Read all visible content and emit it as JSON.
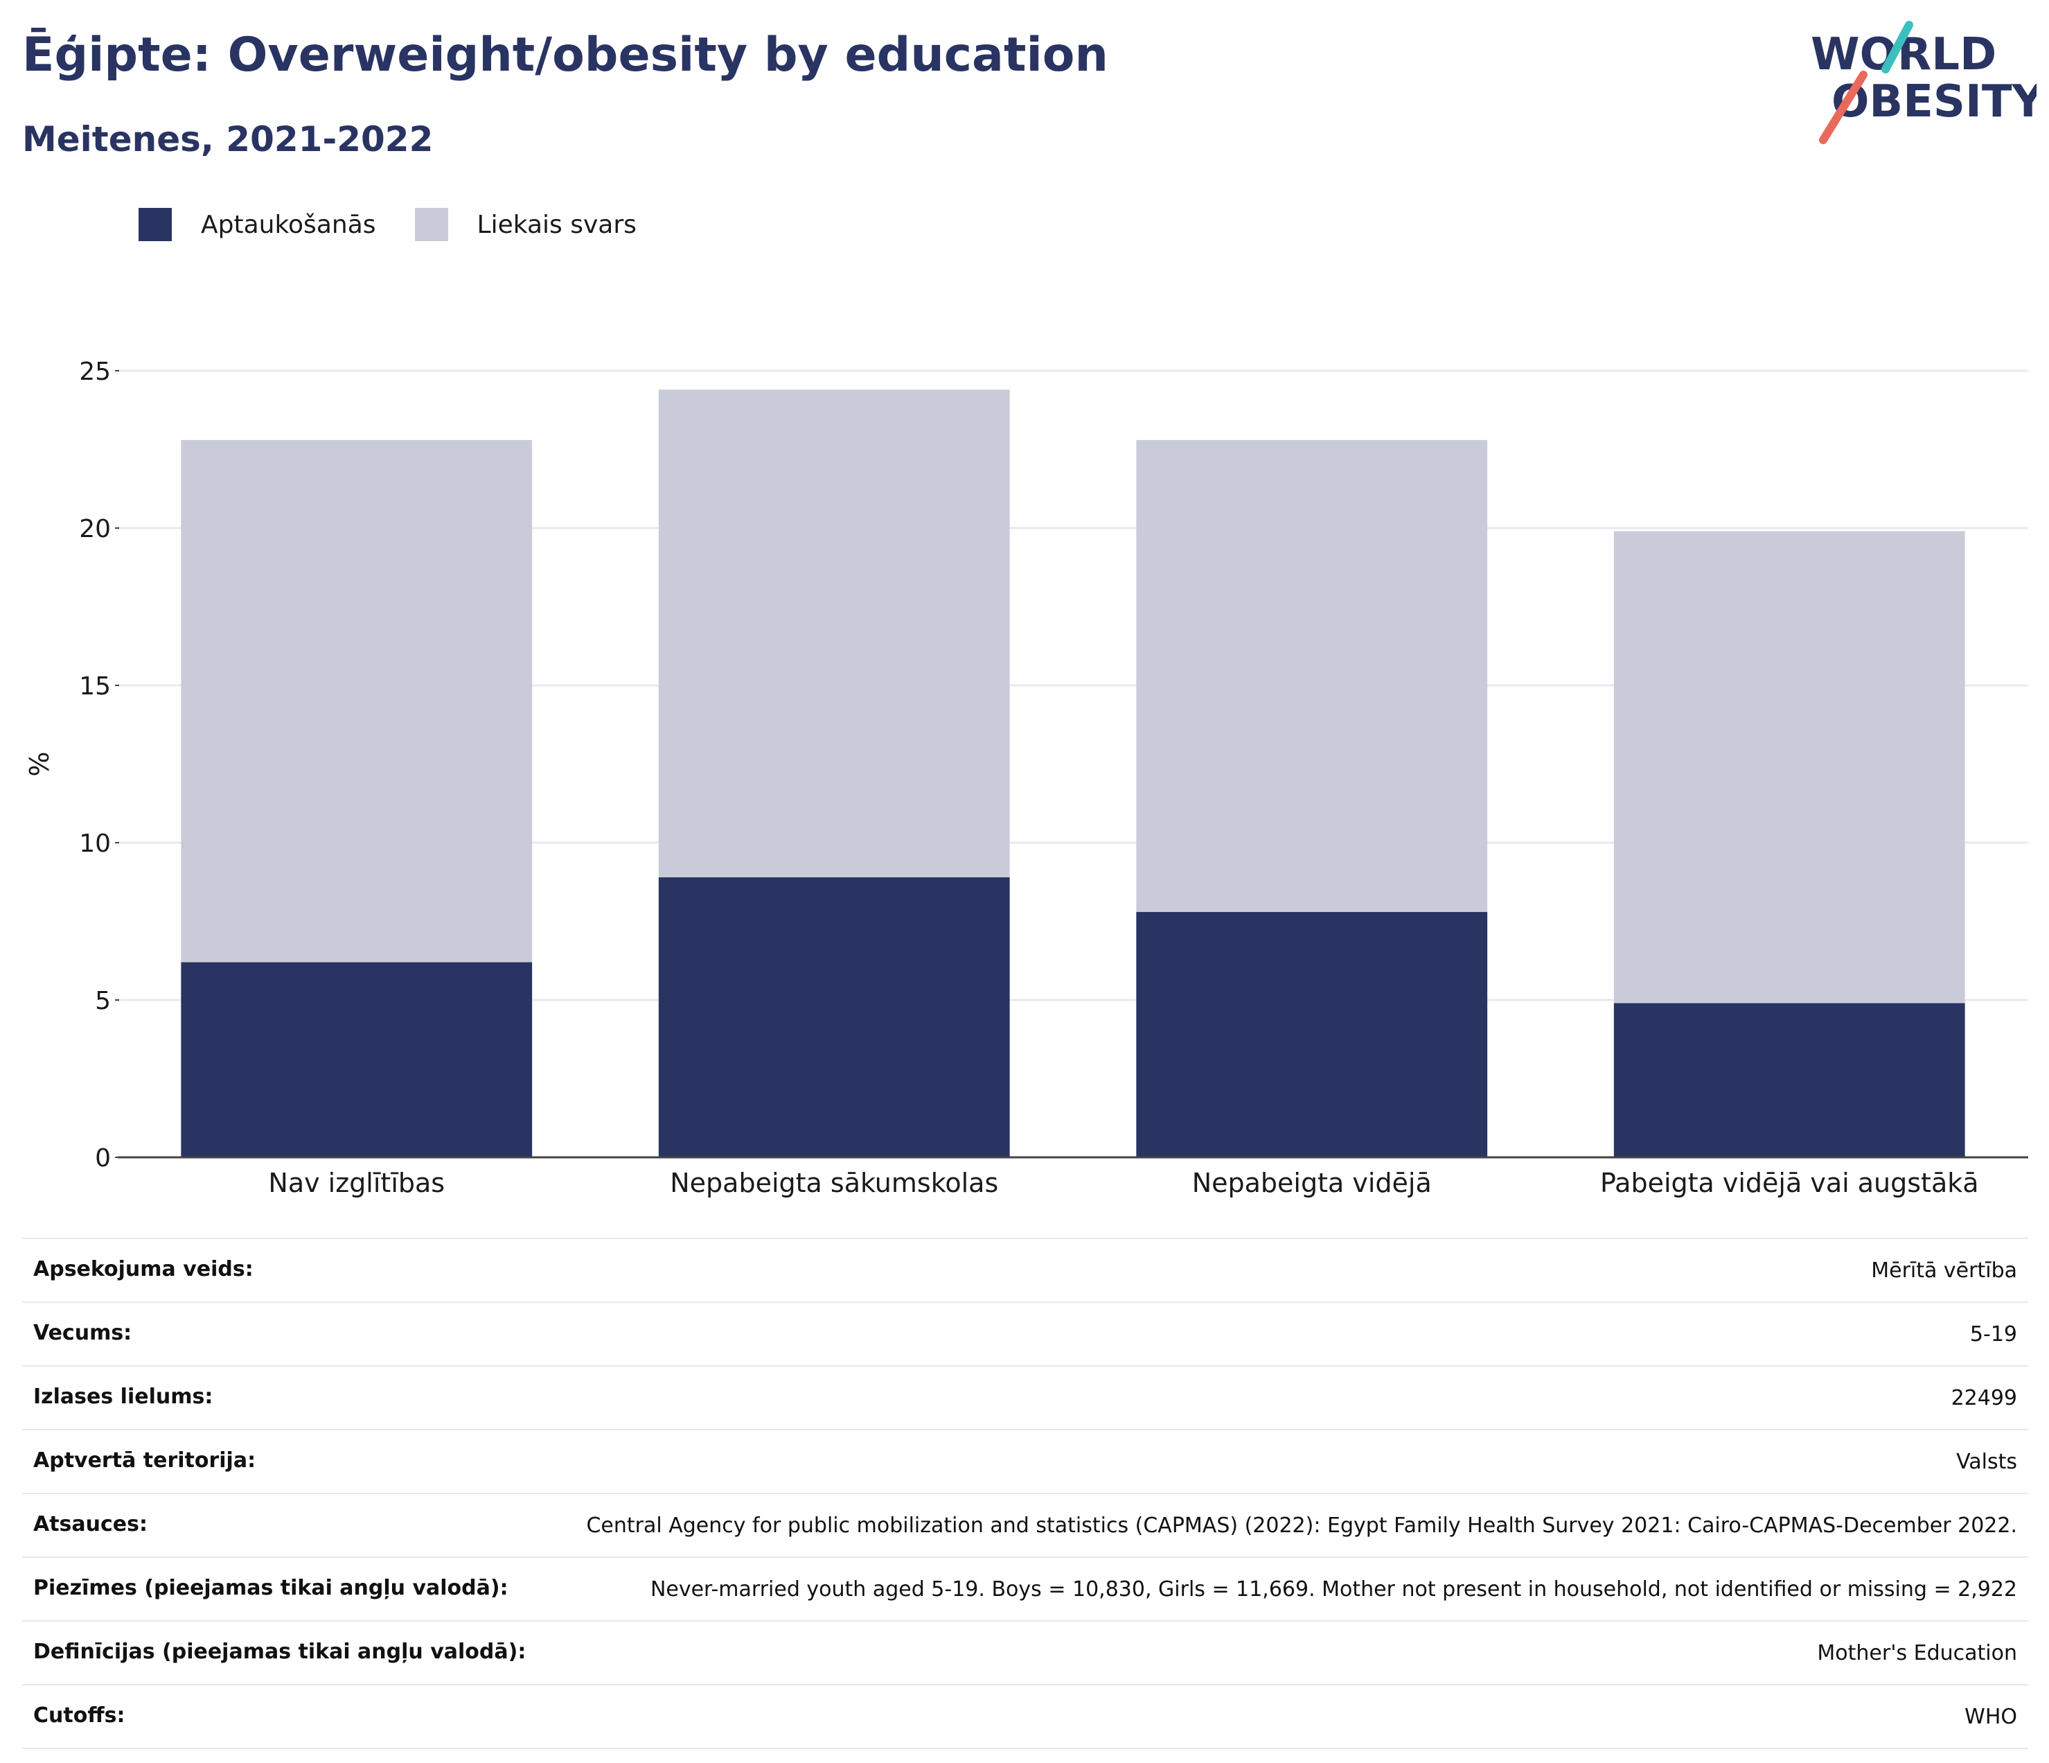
{
  "header": {
    "title": "Ēģipte: Overweight/obesity by education",
    "subtitle": "Meitenes, 2021-2022"
  },
  "logo": {
    "line1": "WORLD",
    "line2": "OBESITY",
    "accent_teal": "#3bbfbf",
    "accent_coral": "#e86a5a"
  },
  "chart_data": {
    "type": "bar",
    "stacked": true,
    "categories": [
      "Nav izglītības",
      "Nepabeigta sākumskolas",
      "Nepabeigta vidējā",
      "Pabeigta vidējā vai augstākā"
    ],
    "series": [
      {
        "name": "Aptaukošanās",
        "color": "#293462",
        "values": [
          6.2,
          8.9,
          7.8,
          4.9
        ]
      },
      {
        "name": "Liekais svars",
        "color": "#c9ccd8",
        "values": [
          16.6,
          15.5,
          15.0,
          15.0
        ]
      }
    ],
    "ylabel": "%",
    "ylim": [
      0,
      25
    ],
    "yticks": [
      0,
      5,
      10,
      15,
      20,
      25
    ],
    "grid": true,
    "legend_position": "top-left"
  },
  "info": [
    {
      "label": "Apsekojuma veids:",
      "value": "Mērītā vērtība"
    },
    {
      "label": "Vecums:",
      "value": "5-19"
    },
    {
      "label": "Izlases lielums:",
      "value": "22499"
    },
    {
      "label": "Aptvertā teritorija:",
      "value": "Valsts"
    },
    {
      "label": "Atsauces:",
      "value": "Central Agency for public mobilization and statistics (CAPMAS) (2022): Egypt Family Health Survey 2021: Cairo-CAPMAS-December 2022."
    },
    {
      "label": "Piezīmes (pieejamas tikai angļu valodā):",
      "value": "Never-married youth aged 5-19. Boys = 10,830, Girls = 11,669. Mother not present in household, not identified or missing = 2,922"
    },
    {
      "label": "Definīcijas (pieejamas tikai angļu valodā):",
      "value": "Mother's Education"
    },
    {
      "label": "Cutoffs:",
      "value": "WHO"
    }
  ]
}
